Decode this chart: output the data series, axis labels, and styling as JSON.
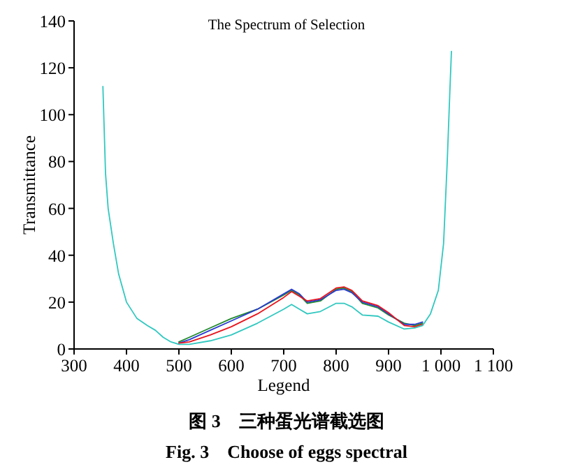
{
  "chart_data": {
    "type": "line",
    "title": "The Spectrum of Selection",
    "xlabel": "Legend",
    "ylabel": "Transmittance",
    "x": [
      355,
      360,
      365,
      375,
      385,
      400,
      420,
      440,
      455,
      470,
      485,
      500,
      520,
      560,
      600,
      650,
      700,
      715,
      730,
      745,
      770,
      800,
      815,
      830,
      850,
      880,
      900,
      930,
      950,
      965,
      980,
      995,
      1005,
      1012,
      1017,
      1020
    ],
    "series": [
      {
        "color": "#1f8a2a",
        "values": [
          null,
          null,
          null,
          null,
          null,
          null,
          null,
          null,
          null,
          null,
          null,
          3,
          5,
          9,
          13,
          17,
          23,
          25,
          23,
          19.5,
          20.5,
          25.5,
          26,
          24.5,
          19.5,
          17.5,
          14.5,
          11,
          10,
          11,
          null,
          null,
          null,
          null,
          null,
          null
        ]
      },
      {
        "color": "#2a3bd0",
        "values": [
          null,
          null,
          null,
          null,
          null,
          null,
          null,
          null,
          null,
          null,
          null,
          2.5,
          4,
          8,
          12,
          17,
          23.5,
          25.5,
          23.5,
          20,
          21,
          25,
          25.5,
          24,
          20,
          18,
          15,
          10.5,
          10.5,
          11.5,
          null,
          null,
          null,
          null,
          null,
          null
        ]
      },
      {
        "color": "#e8141c",
        "values": [
          null,
          null,
          null,
          null,
          null,
          null,
          null,
          null,
          null,
          null,
          null,
          2.5,
          3,
          6,
          9.5,
          15,
          22,
          24.5,
          22.5,
          20.5,
          21.5,
          26,
          26.5,
          25,
          20.5,
          18.5,
          15.5,
          10,
          9.5,
          10.5,
          null,
          null,
          null,
          null,
          null,
          null
        ]
      },
      {
        "color": "#30c8c0",
        "values": [
          112,
          75,
          60,
          45,
          32,
          20,
          13,
          10,
          8,
          5,
          3,
          2,
          2,
          3.5,
          6,
          11,
          17,
          19,
          17,
          15,
          16,
          19.5,
          19.5,
          18,
          14.5,
          14,
          11.5,
          8.5,
          9,
          10,
          15,
          25,
          45,
          80,
          110,
          127
        ]
      }
    ],
    "xlim": [
      300,
      1100
    ],
    "ylim": [
      0,
      140
    ],
    "xticks": [
      300,
      400,
      500,
      600,
      700,
      800,
      900,
      {
        "value": 1000,
        "label": "1 000"
      },
      {
        "value": 1100,
        "label": "1 100"
      }
    ],
    "yticks": [
      0,
      20,
      40,
      60,
      80,
      100,
      120,
      140
    ],
    "grid": false,
    "marker": "none",
    "line_style": "solid",
    "annotations": [
      "图 3　三种蛋光谱截选图",
      "Fig. 3　Choose of eggs spectral"
    ]
  }
}
